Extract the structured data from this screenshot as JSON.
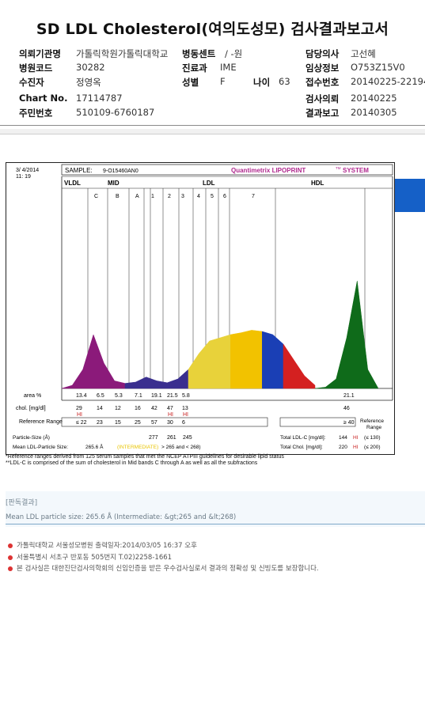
{
  "title": "SD LDL Cholesterol(여의도성모) 검사결과보고서",
  "info": [
    [
      {
        "label": "의뢰기관명",
        "value": "가톨릭학원가톨릭대학교"
      },
      {
        "label": "병동센트",
        "value": "/ -원"
      },
      {
        "label": "담당의사",
        "value": "고선혜"
      }
    ],
    [
      {
        "label": "병원코드",
        "value": "30282"
      },
      {
        "label": "진료과",
        "value": "IME"
      },
      {
        "label": "임상정보",
        "value": "O753Z15V0"
      }
    ],
    [
      {
        "label": "수진자",
        "value": "정영옥"
      },
      {
        "label": "성별",
        "value": "F"
      },
      {
        "label": "나이",
        "value": "63"
      },
      {
        "label": "접수번호",
        "value": "20140225-22194"
      }
    ],
    [
      {
        "label": "Chart No.",
        "value": "17114787"
      },
      {
        "label": "검사의뢰",
        "value": "20140225"
      }
    ],
    [
      {
        "label": "주민번호",
        "value": "510109-6760187"
      },
      {
        "label": "결과보고",
        "value": "20140305"
      }
    ]
  ],
  "report": {
    "date": "3/  4/2014",
    "time": "11: 19",
    "sample_label": "SAMPLE:",
    "sample_id": "9-O15460AN0",
    "brand": "Quantimetrix LIPOPRINT",
    "brand_tm": "TM",
    "brand_suffix": "SYSTEM",
    "sections": [
      "VLDL",
      "MID",
      "LDL",
      "HDL"
    ],
    "subbands": [
      "C",
      "B",
      "A",
      "1",
      "2",
      "3",
      "4",
      "5",
      "6",
      "7"
    ],
    "row_labels": [
      "area %",
      "chol. [mg/dl]",
      "Reference Range",
      "Particle-Size (Å)",
      "Mean LDL-Particle Size:"
    ],
    "area": [
      "13.4",
      "6.5",
      "5.3",
      "7.1",
      "19.1",
      "21.5",
      "5.8",
      "21.1"
    ],
    "chol": [
      "29",
      "14",
      "12",
      "16",
      "42",
      "47",
      "13",
      "46"
    ],
    "hi_flags": [
      "HI",
      "",
      "",
      "",
      "",
      "HI",
      "HI",
      ""
    ],
    "ref_ranges": [
      "≤ 22",
      "23",
      "15",
      "25",
      "57",
      "30",
      "6",
      "≥ 40"
    ],
    "particle_sizes": [
      "277",
      "261",
      "245"
    ],
    "mean_size": "265.6 Å",
    "mean_size_cat": "(INTERMEDIATE)",
    "mean_size_ref": "> 265 and < 268)",
    "total_ldl_label": "Total LDL-C [mg/dl]:",
    "total_ldl": "144",
    "total_ldl_flag": "HI",
    "total_ldl_ref": "(≤ 130)",
    "total_chol_label": "Total Chol. [mg/dl]:",
    "total_chol": "220",
    "total_chol_flag": "HI",
    "total_chol_ref": "(≤ 200)"
  },
  "footnotes": [
    "*Reference ranges derived from 125 serum samples that met the NCEP ATPIII guidelines for desirable lipid status",
    "**LDL-C is comprised of the sum of cholesterol in Mid bands C through A as well as all the subfractions"
  ],
  "panel": {
    "title": "[판독결과]",
    "text": "Mean LDL particle size: 265.6 Å (Intermediate: &gt;265 and &lt;268)"
  },
  "bullets": [
    "가톨릭대학교 서울성모병원     출력일자:2014/03/05 16:37 오후",
    "서울특별시 서초구 반포동 505번지 T.02)2258-1661",
    "본 검사실은 대한진단검사의학회의 신임인증을 받은 우수검사실로서 결과의 정확성 및 신빙도를 보장합니다."
  ],
  "chart_data": {
    "type": "area",
    "title": "",
    "xlabel": "",
    "ylabel": "",
    "x": [
      0,
      1,
      2,
      3,
      4,
      5,
      6,
      7,
      8,
      9,
      10,
      11,
      12,
      13,
      14,
      15,
      16,
      17,
      18,
      19,
      20,
      21,
      22,
      23,
      24,
      25,
      26,
      27,
      28,
      29,
      30
    ],
    "series": [
      {
        "values": [
          0,
          5,
          30,
          85,
          40,
          12,
          8,
          10,
          18,
          12,
          9,
          15,
          30,
          55,
          75,
          80,
          85,
          88,
          92,
          90,
          85,
          70,
          45,
          20,
          5,
          0,
          0,
          0,
          0,
          0,
          0
        ]
      },
      {
        "values": [
          0,
          0,
          0,
          0,
          0,
          0,
          0,
          0,
          0,
          0,
          0,
          0,
          0,
          0,
          0,
          0,
          0,
          0,
          0,
          0,
          0,
          0,
          0,
          0,
          0,
          2,
          15,
          80,
          170,
          30,
          0
        ]
      }
    ],
    "colors": {
      "vldl": "#8b1a7a",
      "mid": "#3a2f8f",
      "ldl1": "#e8d23a",
      "ldl2": "#f2c200",
      "ldl3": "#1a3fb5",
      "ldl4": "#d42020",
      "hdl": "#0f6b1a"
    }
  }
}
